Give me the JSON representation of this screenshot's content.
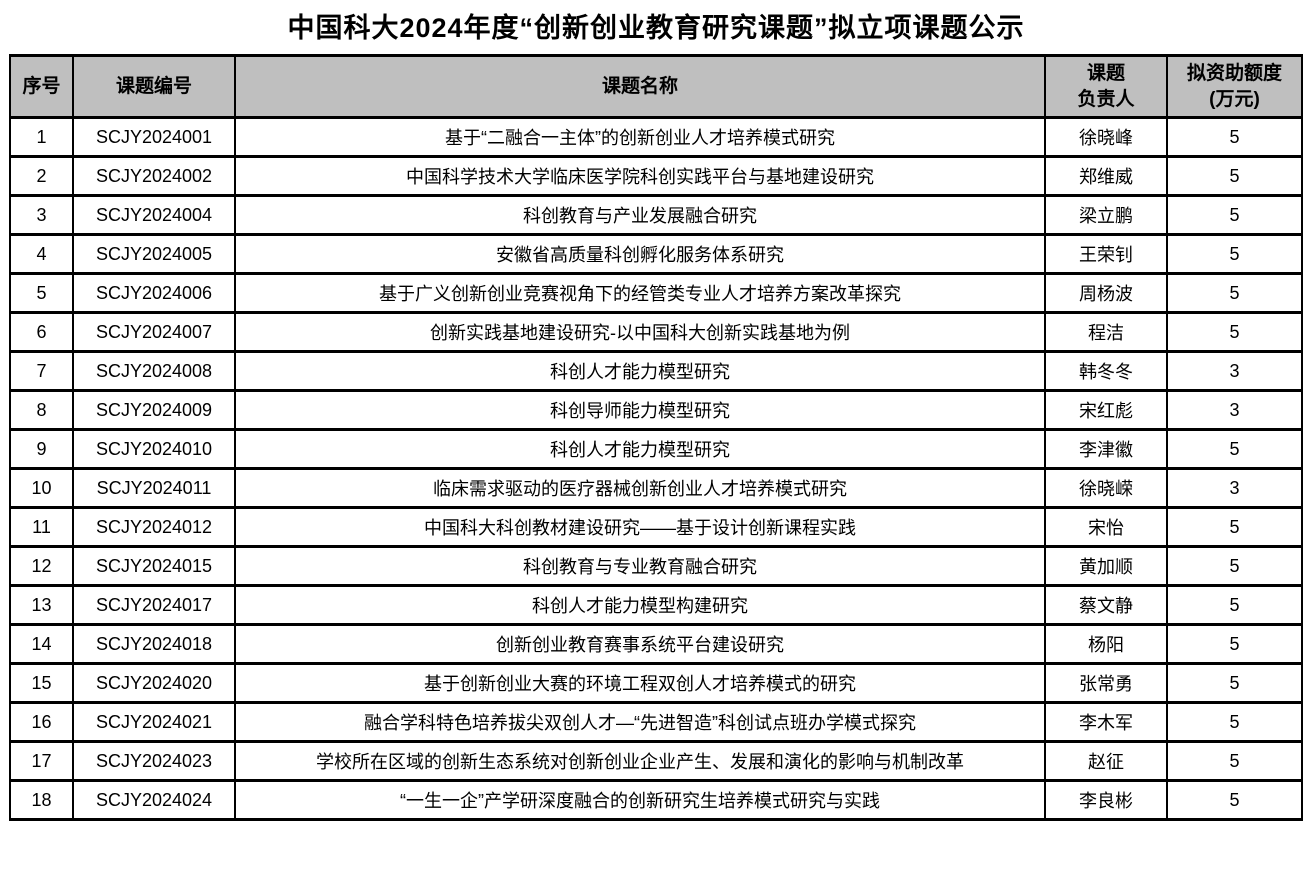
{
  "title": "中国科大2024年度“创新创业教育研究课题”拟立项课题公示",
  "colors": {
    "header_bg": "#BFBFBF",
    "border": "#000000",
    "text": "#000000"
  },
  "table": {
    "headers": {
      "index": "序号",
      "id": "课题编号",
      "name": "课题名称",
      "leader_line1": "课题",
      "leader_line2": "负责人",
      "amount_line1": "拟资助额度",
      "amount_line2": "(万元)"
    },
    "rows": [
      {
        "index": "1",
        "id": "SCJY2024001",
        "name": "基于“二融合一主体”的创新创业人才培养模式研究",
        "leader": "徐晓峰",
        "amount": "5"
      },
      {
        "index": "2",
        "id": "SCJY2024002",
        "name": "中国科学技术大学临床医学院科创实践平台与基地建设研究",
        "leader": "郑维威",
        "amount": "5"
      },
      {
        "index": "3",
        "id": "SCJY2024004",
        "name": "科创教育与产业发展融合研究",
        "leader": "梁立鹏",
        "amount": "5"
      },
      {
        "index": "4",
        "id": "SCJY2024005",
        "name": "安徽省高质量科创孵化服务体系研究",
        "leader": "王荣钊",
        "amount": "5"
      },
      {
        "index": "5",
        "id": "SCJY2024006",
        "name": "基于广义创新创业竞赛视角下的经管类专业人才培养方案改革探究",
        "leader": "周杨波",
        "amount": "5"
      },
      {
        "index": "6",
        "id": "SCJY2024007",
        "name": "创新实践基地建设研究-以中国科大创新实践基地为例",
        "leader": "程洁",
        "amount": "5"
      },
      {
        "index": "7",
        "id": "SCJY2024008",
        "name": "科创人才能力模型研究",
        "leader": "韩冬冬",
        "amount": "3"
      },
      {
        "index": "8",
        "id": "SCJY2024009",
        "name": "科创导师能力模型研究",
        "leader": "宋红彪",
        "amount": "3"
      },
      {
        "index": "9",
        "id": "SCJY2024010",
        "name": "科创人才能力模型研究",
        "leader": "李津徽",
        "amount": "5"
      },
      {
        "index": "10",
        "id": "SCJY2024011",
        "name": "临床需求驱动的医疗器械创新创业人才培养模式研究",
        "leader": "徐晓嵘",
        "amount": "3"
      },
      {
        "index": "11",
        "id": "SCJY2024012",
        "name": "中国科大科创教材建设研究——基于设计创新课程实践",
        "leader": "宋怡",
        "amount": "5"
      },
      {
        "index": "12",
        "id": "SCJY2024015",
        "name": "科创教育与专业教育融合研究",
        "leader": "黄加顺",
        "amount": "5"
      },
      {
        "index": "13",
        "id": "SCJY2024017",
        "name": "科创人才能力模型构建研究",
        "leader": "蔡文静",
        "amount": "5"
      },
      {
        "index": "14",
        "id": "SCJY2024018",
        "name": "创新创业教育赛事系统平台建设研究",
        "leader": "杨阳",
        "amount": "5"
      },
      {
        "index": "15",
        "id": "SCJY2024020",
        "name": "基于创新创业大赛的环境工程双创人才培养模式的研究",
        "leader": "张常勇",
        "amount": "5"
      },
      {
        "index": "16",
        "id": "SCJY2024021",
        "name": "融合学科特色培养拔尖双创人才—“先进智造”科创试点班办学模式探究",
        "leader": "李木军",
        "amount": "5"
      },
      {
        "index": "17",
        "id": "SCJY2024023",
        "name": "学校所在区域的创新生态系统对创新创业企业产生、发展和演化的影响与机制改革",
        "leader": "赵征",
        "amount": "5"
      },
      {
        "index": "18",
        "id": "SCJY2024024",
        "name": "“一生一企”产学研深度融合的创新研究生培养模式研究与实践",
        "leader": "李良彬",
        "amount": "5"
      }
    ]
  }
}
